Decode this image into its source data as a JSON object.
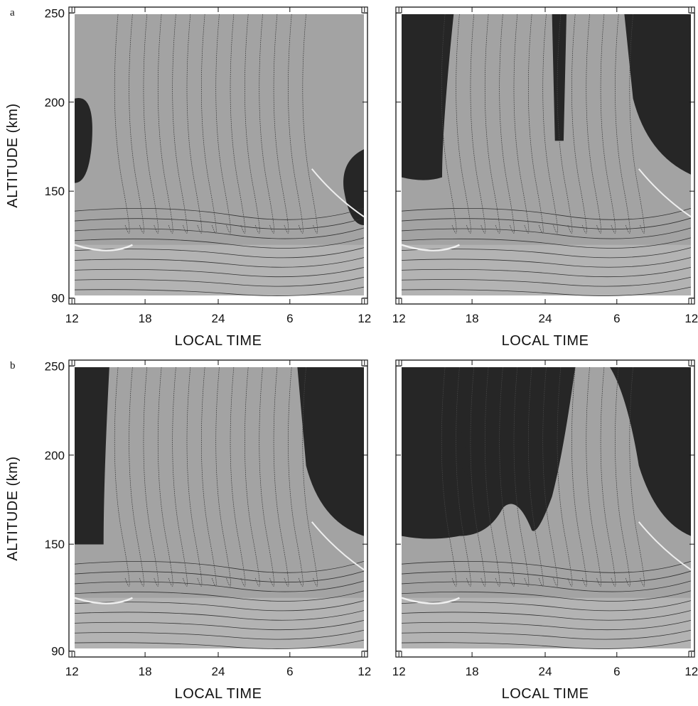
{
  "figure": {
    "rows": [
      {
        "label": "a",
        "y_axis_label": "ALTITUDE (km)",
        "y_tick_labels": [
          "250",
          "200",
          "150",
          "90"
        ],
        "panels": [
          {
            "x_tick_labels": [
              "12",
              "18",
              "24",
              "6",
              "12"
            ],
            "x_axis_label": "LOCAL TIME"
          },
          {
            "x_tick_labels": [
              "12",
              "18",
              "24",
              "6",
              "12"
            ],
            "x_axis_label": "LOCAL TIME"
          }
        ]
      },
      {
        "label": "b",
        "y_axis_label": "ALTITUDE (km)",
        "y_tick_labels": [
          "250",
          "200",
          "150",
          "90"
        ],
        "panels": [
          {
            "x_tick_labels": [
              "12",
              "18",
              "24",
              "6",
              "12"
            ],
            "x_axis_label": "LOCAL TIME"
          },
          {
            "x_tick_labels": [
              "12",
              "18",
              "24",
              "6",
              "12"
            ],
            "x_axis_label": "LOCAL TIME"
          }
        ]
      }
    ]
  }
}
